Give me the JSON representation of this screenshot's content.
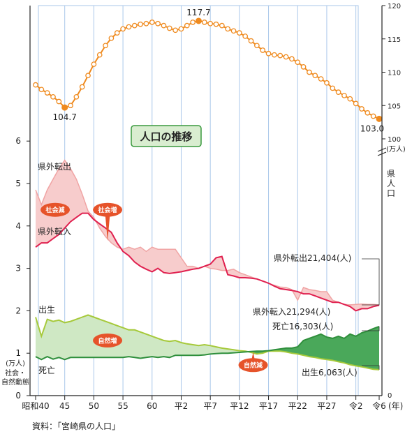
{
  "chart_data": {
    "type": "line",
    "title": "人口の推移",
    "source": "資料：「宮崎県の人口」",
    "x_tick_labels": [
      "昭和40",
      "45",
      "50",
      "55",
      "60",
      "平2",
      "平7",
      "平12",
      "平17",
      "平22",
      "平27",
      "令2",
      "令6"
    ],
    "x_unit": "(年)",
    "left_axis": {
      "ylim": [
        0,
        6.5
      ],
      "ticks": [
        "0",
        "1",
        "2",
        "3",
        "4",
        "5",
        "6"
      ],
      "unit": "(万人)",
      "label": "社会・自然動態"
    },
    "right_axis": {
      "ylim": [
        100,
        120
      ],
      "ticks": [
        "100",
        "105",
        "110",
        "115",
        "120"
      ],
      "unit": "(万人)",
      "label": "県人口",
      "zero_label": "0"
    },
    "years": [
      1965,
      1966,
      1967,
      1968,
      1969,
      1970,
      1971,
      1972,
      1973,
      1974,
      1975,
      1976,
      1977,
      1978,
      1979,
      1980,
      1981,
      1982,
      1983,
      1984,
      1985,
      1986,
      1987,
      1988,
      1989,
      1990,
      1991,
      1992,
      1993,
      1994,
      1995,
      1996,
      1997,
      1998,
      1999,
      2000,
      2001,
      2002,
      2003,
      2004,
      2005,
      2006,
      2007,
      2008,
      2009,
      2010,
      2011,
      2012,
      2013,
      2014,
      2015,
      2016,
      2017,
      2018,
      2019,
      2020,
      2021,
      2022,
      2023,
      2024
    ],
    "series": [
      {
        "name": "県人口",
        "axis": "right",
        "color": "#ef8a1e",
        "values": [
          108.1,
          107.4,
          106.9,
          106.3,
          105.6,
          104.7,
          105.0,
          106.3,
          107.8,
          109.5,
          111.2,
          112.6,
          114.0,
          115.1,
          115.9,
          116.5,
          116.8,
          117.0,
          117.2,
          117.3,
          117.5,
          117.3,
          117.0,
          116.6,
          116.3,
          116.5,
          117.0,
          117.5,
          117.7,
          117.5,
          117.3,
          117.2,
          117.0,
          116.5,
          116.2,
          115.9,
          115.4,
          114.7,
          114.0,
          113.3,
          112.8,
          112.6,
          112.5,
          112.3,
          112.0,
          111.5,
          110.8,
          110.0,
          109.5,
          109.0,
          108.4,
          107.6,
          107.0,
          106.5,
          106.0,
          105.3,
          104.5,
          103.9,
          103.4,
          103.0
        ],
        "labels": [
          {
            "year": 1970,
            "text": "104.7"
          },
          {
            "year": 1993,
            "text": "117.7"
          },
          {
            "year": 2024,
            "text": "103.0"
          }
        ]
      },
      {
        "name": "県外転出",
        "axis": "left",
        "color": "#f0a4a4",
        "values": [
          4.85,
          4.5,
          4.85,
          5.1,
          5.35,
          5.55,
          5.35,
          5.1,
          4.75,
          4.35,
          4.2,
          3.95,
          3.75,
          3.6,
          3.5,
          3.45,
          3.5,
          3.45,
          3.5,
          3.4,
          3.5,
          3.45,
          3.45,
          3.45,
          3.45,
          3.25,
          3.05,
          3.05,
          3.0,
          3.05,
          3.0,
          2.98,
          2.95,
          2.95,
          2.98,
          2.9,
          2.85,
          2.8,
          2.75,
          2.7,
          2.65,
          2.6,
          2.56,
          2.55,
          2.5,
          2.25,
          2.55,
          2.5,
          2.48,
          2.45,
          2.45,
          2.25,
          2.2,
          2.15,
          2.14,
          2.15,
          2.16,
          2.15,
          2.15,
          2.14
        ],
        "labels": [
          {
            "text": "県外転出",
            "position": "start"
          },
          {
            "text": "県外転出21,404(人)",
            "position": "end"
          }
        ]
      },
      {
        "name": "県外転入",
        "axis": "left",
        "color": "#e0204f",
        "values": [
          3.5,
          3.6,
          3.6,
          3.7,
          3.8,
          3.95,
          4.1,
          4.2,
          4.3,
          4.3,
          4.15,
          4.05,
          3.95,
          3.85,
          3.6,
          3.4,
          3.3,
          3.15,
          3.05,
          2.98,
          2.92,
          3.0,
          2.9,
          2.88,
          2.9,
          2.92,
          2.95,
          2.98,
          3.0,
          3.05,
          3.1,
          3.25,
          3.28,
          2.85,
          2.82,
          2.78,
          2.78,
          2.77,
          2.75,
          2.7,
          2.65,
          2.58,
          2.52,
          2.5,
          2.48,
          2.45,
          2.4,
          2.4,
          2.35,
          2.3,
          2.25,
          2.2,
          2.2,
          2.15,
          2.1,
          2.0,
          2.05,
          2.05,
          2.1,
          2.13
        ],
        "labels": [
          {
            "text": "県外転入",
            "position": "start"
          },
          {
            "text": "県外転入21,294(人)",
            "position": "end"
          }
        ]
      },
      {
        "name": "出生",
        "axis": "left",
        "color": "#a6c93a",
        "values": [
          1.85,
          1.4,
          1.8,
          1.75,
          1.78,
          1.72,
          1.75,
          1.8,
          1.85,
          1.9,
          1.85,
          1.8,
          1.75,
          1.7,
          1.65,
          1.6,
          1.55,
          1.55,
          1.5,
          1.45,
          1.4,
          1.35,
          1.3,
          1.28,
          1.3,
          1.25,
          1.22,
          1.2,
          1.18,
          1.2,
          1.18,
          1.15,
          1.12,
          1.1,
          1.08,
          1.06,
          1.05,
          1.02,
          0.98,
          1.0,
          1.05,
          1.05,
          1.05,
          1.03,
          1.0,
          0.98,
          0.95,
          0.92,
          0.9,
          0.87,
          0.85,
          0.83,
          0.8,
          0.77,
          0.73,
          0.7,
          0.68,
          0.65,
          0.62,
          0.61
        ],
        "labels": [
          {
            "text": "出生",
            "position": "start"
          },
          {
            "text": "出生6,063(人)",
            "position": "end"
          }
        ]
      },
      {
        "name": "死亡",
        "axis": "left",
        "color": "#2f8f3c",
        "values": [
          0.92,
          0.85,
          0.92,
          0.86,
          0.9,
          0.85,
          0.9,
          0.9,
          0.9,
          0.9,
          0.9,
          0.9,
          0.9,
          0.9,
          0.9,
          0.9,
          0.92,
          0.9,
          0.88,
          0.9,
          0.92,
          0.9,
          0.92,
          0.9,
          0.95,
          0.95,
          0.95,
          0.95,
          0.95,
          0.96,
          0.98,
          0.99,
          1.0,
          1.0,
          1.01,
          1.02,
          1.03,
          1.04,
          1.05,
          1.05,
          1.06,
          1.08,
          1.1,
          1.12,
          1.12,
          1.15,
          1.3,
          1.35,
          1.4,
          1.45,
          1.38,
          1.35,
          1.4,
          1.35,
          1.45,
          1.4,
          1.48,
          1.52,
          1.58,
          1.63
        ],
        "labels": [
          {
            "text": "死亡",
            "position": "start"
          },
          {
            "text": "死亡16,303(人)",
            "position": "end"
          }
        ]
      }
    ],
    "bands": [
      {
        "between": [
          "県外転出",
          "県外転入"
        ],
        "color": "#f7cccc"
      },
      {
        "between": [
          "出生",
          "死亡"
        ],
        "color": "#cfe8c4",
        "alt_color": "#4aa85a"
      }
    ],
    "annotations": [
      {
        "text": "社会減",
        "year": 1968,
        "value": 4.38,
        "color": "#e6532a"
      },
      {
        "text": "社会増",
        "year": 1977,
        "value": 4.38,
        "color": "#e6532a",
        "pointer_value": 3.65
      },
      {
        "text": "自然増",
        "year": 1977,
        "value": 1.3,
        "color": "#e6532a"
      },
      {
        "text": "自然減",
        "year": 2002,
        "value": 0.72,
        "color": "#e6532a",
        "pointer_value": 1.02
      }
    ]
  }
}
